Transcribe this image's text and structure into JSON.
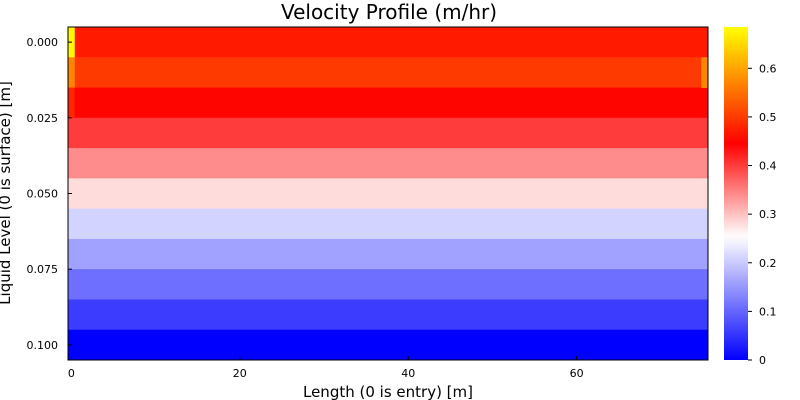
{
  "chart_data": {
    "type": "heatmap",
    "title": "Velocity Profile (m/hr)",
    "xlabel": "Length (0 is entry) [m]",
    "ylabel": "Liquid Level (0 is surface) [m]",
    "x_range": [
      -0.4,
      75.6
    ],
    "y_range": [
      -0.005,
      0.105
    ],
    "y_inverted": true,
    "x_ticks": [
      "0",
      "20",
      "40",
      "60"
    ],
    "x_tick_values": [
      0,
      20,
      40,
      60
    ],
    "y_ticks": [
      "0.000",
      "0.025",
      "0.050",
      "0.075",
      "0.100"
    ],
    "y_tick_values": [
      0.0,
      0.025,
      0.05,
      0.075,
      0.1
    ],
    "rows": [
      {
        "depth": 0.0,
        "value": 0.47
      },
      {
        "depth": 0.01,
        "value": 0.5
      },
      {
        "depth": 0.02,
        "value": 0.45
      },
      {
        "depth": 0.03,
        "value": 0.4
      },
      {
        "depth": 0.04,
        "value": 0.34
      },
      {
        "depth": 0.05,
        "value": 0.28
      },
      {
        "depth": 0.06,
        "value": 0.21
      },
      {
        "depth": 0.07,
        "value": 0.16
      },
      {
        "depth": 0.08,
        "value": 0.11
      },
      {
        "depth": 0.09,
        "value": 0.06
      },
      {
        "depth": 0.1,
        "value": 0.0
      }
    ],
    "edge_cells": [
      {
        "depth": 0.0,
        "x_from": -0.4,
        "x_to": 0.4,
        "value": 0.68
      },
      {
        "depth": 0.01,
        "x_from": -0.4,
        "x_to": 0.4,
        "value": 0.57
      },
      {
        "depth": 0.01,
        "x_from": 74.8,
        "x_to": 75.6,
        "value": 0.57
      },
      {
        "depth": 0.02,
        "x_from": -0.4,
        "x_to": 0.4,
        "value": 0.48
      }
    ],
    "colorbar": {
      "min": 0,
      "max": 0.685,
      "ticks": [
        "0",
        "0.1",
        "0.2",
        "0.3",
        "0.4",
        "0.5",
        "0.6"
      ],
      "tick_values": [
        0,
        0.1,
        0.2,
        0.3,
        0.4,
        0.5,
        0.6
      ],
      "colorscale": [
        "#0000ff",
        "#ffffff",
        "#ff0000",
        "#ffff00"
      ],
      "colorscale_stops": [
        0,
        0.37,
        0.65,
        1.0
      ]
    },
    "grid": false,
    "legend": "colorbar-right"
  }
}
